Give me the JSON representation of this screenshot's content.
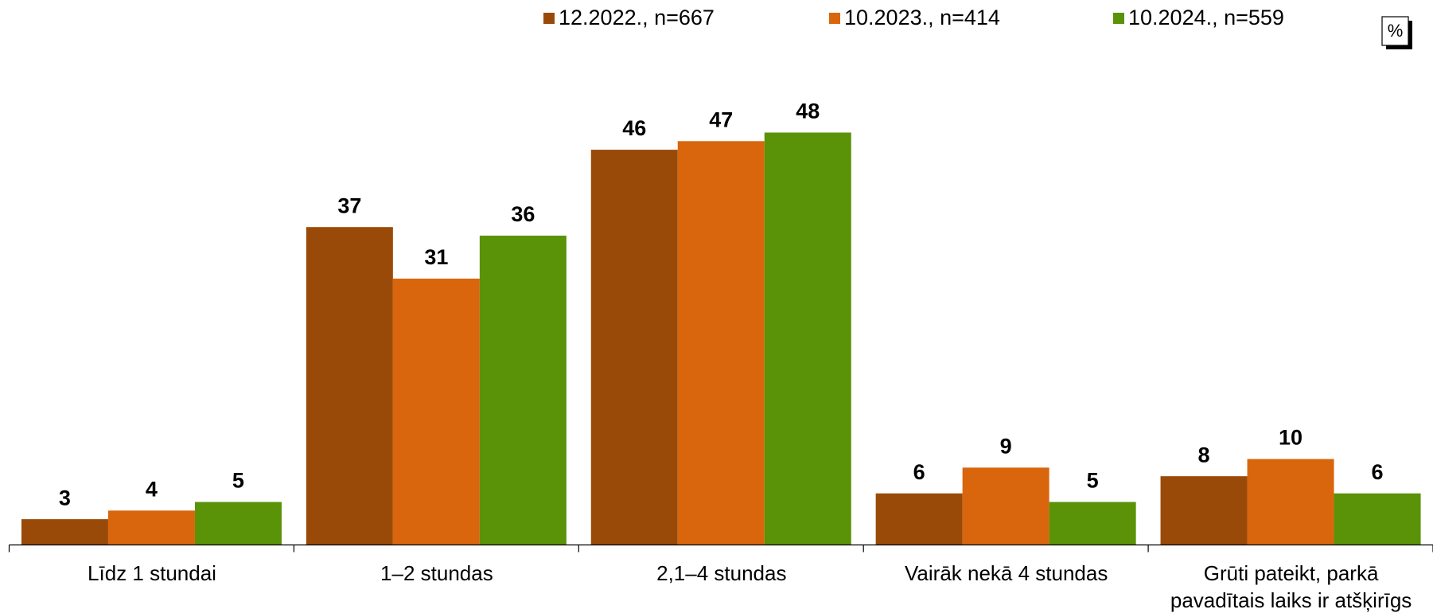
{
  "chart_data": {
    "type": "bar",
    "categories": [
      "Līdz 1 stundai",
      "1–2 stundas",
      "2,1–4  stundas",
      "Vairāk nekā 4 stundas",
      "Grūti pateikt, parkā\npavadītais laiks ir atšķirīgs"
    ],
    "series": [
      {
        "name": "12.2022., n=667",
        "color": "#9a4a08",
        "values": [
          3,
          37,
          46,
          6,
          8
        ]
      },
      {
        "name": "10.2023., n=414",
        "color": "#d9660c",
        "values": [
          4,
          31,
          47,
          9,
          10
        ]
      },
      {
        "name": "10.2024., n=559",
        "color": "#5a9208",
        "values": [
          5,
          36,
          48,
          5,
          6
        ]
      }
    ],
    "unit_label": "%",
    "legend": "top"
  }
}
